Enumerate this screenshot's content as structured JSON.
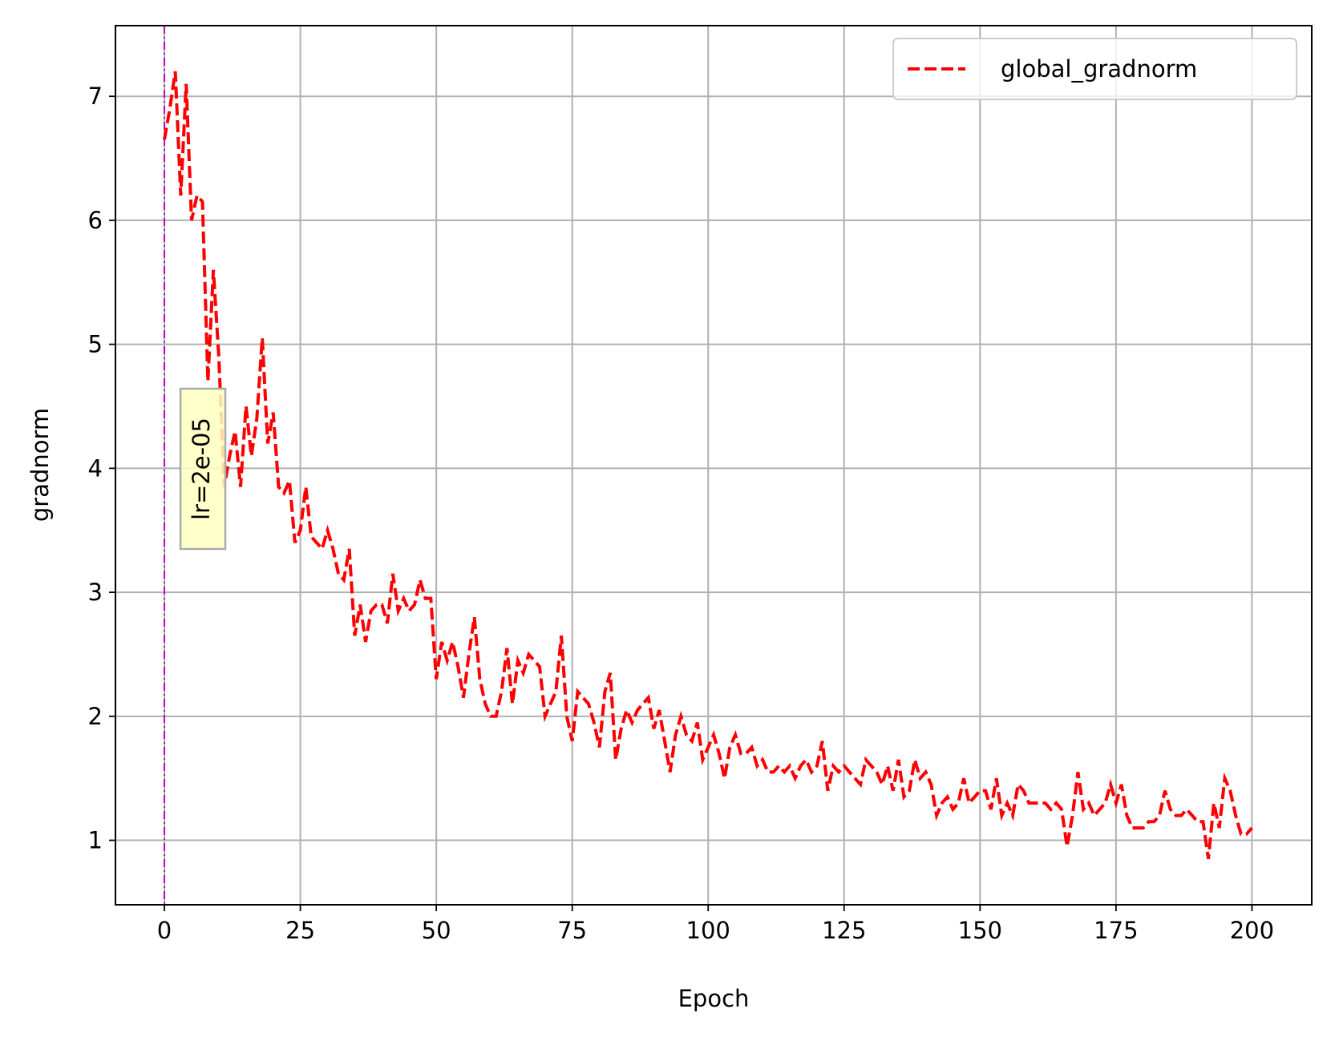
{
  "chart_data": {
    "type": "line",
    "xlabel": "Epoch",
    "ylabel": "gradnorm",
    "x": [
      0,
      1,
      2,
      3,
      4,
      5,
      6,
      7,
      8,
      9,
      10,
      11,
      12,
      13,
      14,
      15,
      16,
      17,
      18,
      19,
      20,
      21,
      22,
      23,
      24,
      25,
      26,
      27,
      28,
      29,
      30,
      31,
      32,
      33,
      34,
      35,
      36,
      37,
      38,
      39,
      40,
      41,
      42,
      43,
      44,
      45,
      46,
      47,
      48,
      49,
      50,
      51,
      52,
      53,
      54,
      55,
      56,
      57,
      58,
      59,
      60,
      61,
      62,
      63,
      64,
      65,
      66,
      67,
      68,
      69,
      70,
      71,
      72,
      73,
      74,
      75,
      76,
      77,
      78,
      79,
      80,
      81,
      82,
      83,
      84,
      85,
      86,
      87,
      88,
      89,
      90,
      91,
      92,
      93,
      94,
      95,
      96,
      97,
      98,
      99,
      100,
      101,
      102,
      103,
      104,
      105,
      106,
      107,
      108,
      109,
      110,
      111,
      112,
      113,
      114,
      115,
      116,
      117,
      118,
      119,
      120,
      121,
      122,
      123,
      124,
      125,
      126,
      127,
      128,
      129,
      130,
      131,
      132,
      133,
      134,
      135,
      136,
      137,
      138,
      139,
      140,
      141,
      142,
      143,
      144,
      145,
      146,
      147,
      148,
      149,
      150,
      151,
      152,
      153,
      154,
      155,
      156,
      157,
      158,
      159,
      160,
      161,
      162,
      163,
      164,
      165,
      166,
      167,
      168,
      169,
      170,
      171,
      172,
      173,
      174,
      175,
      176,
      177,
      178,
      179,
      180,
      181,
      182,
      183,
      184,
      185,
      186,
      187,
      188,
      189,
      190,
      191,
      192,
      193,
      194,
      195,
      196,
      197,
      198,
      199,
      200
    ],
    "series": [
      {
        "name": "global_gradnorm",
        "color": "#ff0000",
        "dash": true,
        "values": [
          6.65,
          6.9,
          7.2,
          6.2,
          7.1,
          6.0,
          6.2,
          6.15,
          4.7,
          5.6,
          4.9,
          3.85,
          4.1,
          4.3,
          3.85,
          4.5,
          4.1,
          4.4,
          5.05,
          4.2,
          4.45,
          3.85,
          3.8,
          3.9,
          3.4,
          3.5,
          3.85,
          3.45,
          3.4,
          3.35,
          3.5,
          3.35,
          3.15,
          3.1,
          3.35,
          2.65,
          2.9,
          2.6,
          2.85,
          2.9,
          2.9,
          2.75,
          3.15,
          2.85,
          2.95,
          2.85,
          2.9,
          3.1,
          2.95,
          2.95,
          2.3,
          2.6,
          2.45,
          2.6,
          2.4,
          2.15,
          2.5,
          2.8,
          2.3,
          2.1,
          2.0,
          2.0,
          2.2,
          2.55,
          2.1,
          2.45,
          2.35,
          2.5,
          2.45,
          2.4,
          2.0,
          2.1,
          2.2,
          2.65,
          2.0,
          1.8,
          2.2,
          2.15,
          2.1,
          1.95,
          1.75,
          2.2,
          2.35,
          1.65,
          1.9,
          2.05,
          1.95,
          2.05,
          2.1,
          2.15,
          1.9,
          2.05,
          1.8,
          1.55,
          1.85,
          2.0,
          1.85,
          1.8,
          1.95,
          1.65,
          1.75,
          1.85,
          1.7,
          1.5,
          1.75,
          1.85,
          1.7,
          1.7,
          1.75,
          1.6,
          1.65,
          1.55,
          1.55,
          1.6,
          1.55,
          1.6,
          1.5,
          1.6,
          1.65,
          1.55,
          1.6,
          1.8,
          1.4,
          1.6,
          1.55,
          1.6,
          1.55,
          1.5,
          1.45,
          1.65,
          1.6,
          1.55,
          1.45,
          1.6,
          1.4,
          1.65,
          1.35,
          1.4,
          1.65,
          1.5,
          1.55,
          1.45,
          1.2,
          1.3,
          1.35,
          1.25,
          1.3,
          1.5,
          1.3,
          1.35,
          1.4,
          1.4,
          1.25,
          1.5,
          1.2,
          1.3,
          1.2,
          1.45,
          1.4,
          1.3,
          1.3,
          1.3,
          1.3,
          1.25,
          1.3,
          1.25,
          0.95,
          1.2,
          1.55,
          1.25,
          1.3,
          1.2,
          1.25,
          1.3,
          1.45,
          1.3,
          1.45,
          1.2,
          1.1,
          1.1,
          1.1,
          1.15,
          1.15,
          1.2,
          1.4,
          1.25,
          1.2,
          1.2,
          1.25,
          1.2,
          1.15,
          1.15,
          0.85,
          1.3,
          1.1,
          1.5,
          1.4,
          1.2,
          1.05,
          1.05,
          1.1
        ]
      }
    ],
    "vlines": [
      {
        "x": 0,
        "color": "#bf00bf",
        "label": "lr=2e-05"
      }
    ],
    "xlim": [
      -9,
      211
    ],
    "ylim": [
      0.48,
      7.57
    ],
    "xticks": [
      0,
      25,
      50,
      75,
      100,
      125,
      150,
      175,
      200
    ],
    "yticks": [
      1,
      2,
      3,
      4,
      5,
      6,
      7
    ],
    "grid": true,
    "legend": "upper right"
  }
}
